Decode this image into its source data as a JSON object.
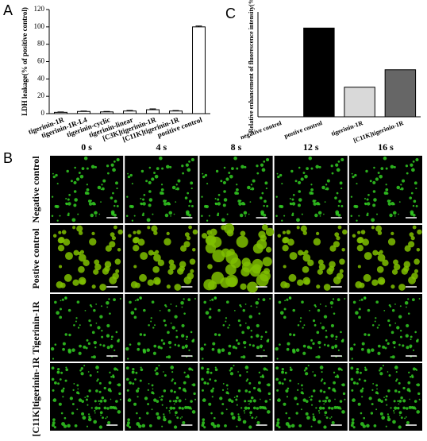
{
  "chart_data": [
    {
      "type": "bar",
      "panel_label": "A",
      "ylabel": "LDH leakage(% of positive control)",
      "categories": [
        "tigerinin-1R",
        "tigerinin-1R-L4",
        "tigerinin-cyclic",
        "tigerinin-linear",
        "[C3K]tigerinin-1R",
        "[C11K]tigerinin-1R",
        "positive control"
      ],
      "values": [
        1.5,
        2.5,
        2,
        3,
        4.5,
        3,
        100
      ],
      "errors": [
        0.5,
        0.5,
        0.5,
        0.7,
        1,
        0.6,
        1
      ],
      "color": "#ffffff",
      "edgecolor": "#000000",
      "ylim": [
        0,
        120
      ],
      "yticks": [
        0,
        20,
        40,
        60,
        80,
        100,
        120
      ]
    },
    {
      "type": "bar",
      "panel_label": "C",
      "ylabel": "Relative enhancement of fluorescence intensity(%)",
      "categories": [
        "negative control",
        "postive control",
        "tigerinin-1R",
        "[C11K]tigerinin-1R"
      ],
      "values": [
        0,
        66,
        22,
        35
      ],
      "colors": [
        "#000000",
        "#000000",
        "#d9d9d9",
        "#666666"
      ],
      "edgecolor": "#000000",
      "ylim": [
        0,
        78
      ]
    }
  ],
  "panel_b": {
    "panel_label": "B",
    "columns": [
      "0 s",
      "4 s",
      "8 s",
      "12 s",
      "16 s"
    ],
    "rows": [
      "Negative control",
      "Postive control",
      "Tigerinin-1R",
      "[C11K]tigerinin-1R"
    ]
  }
}
